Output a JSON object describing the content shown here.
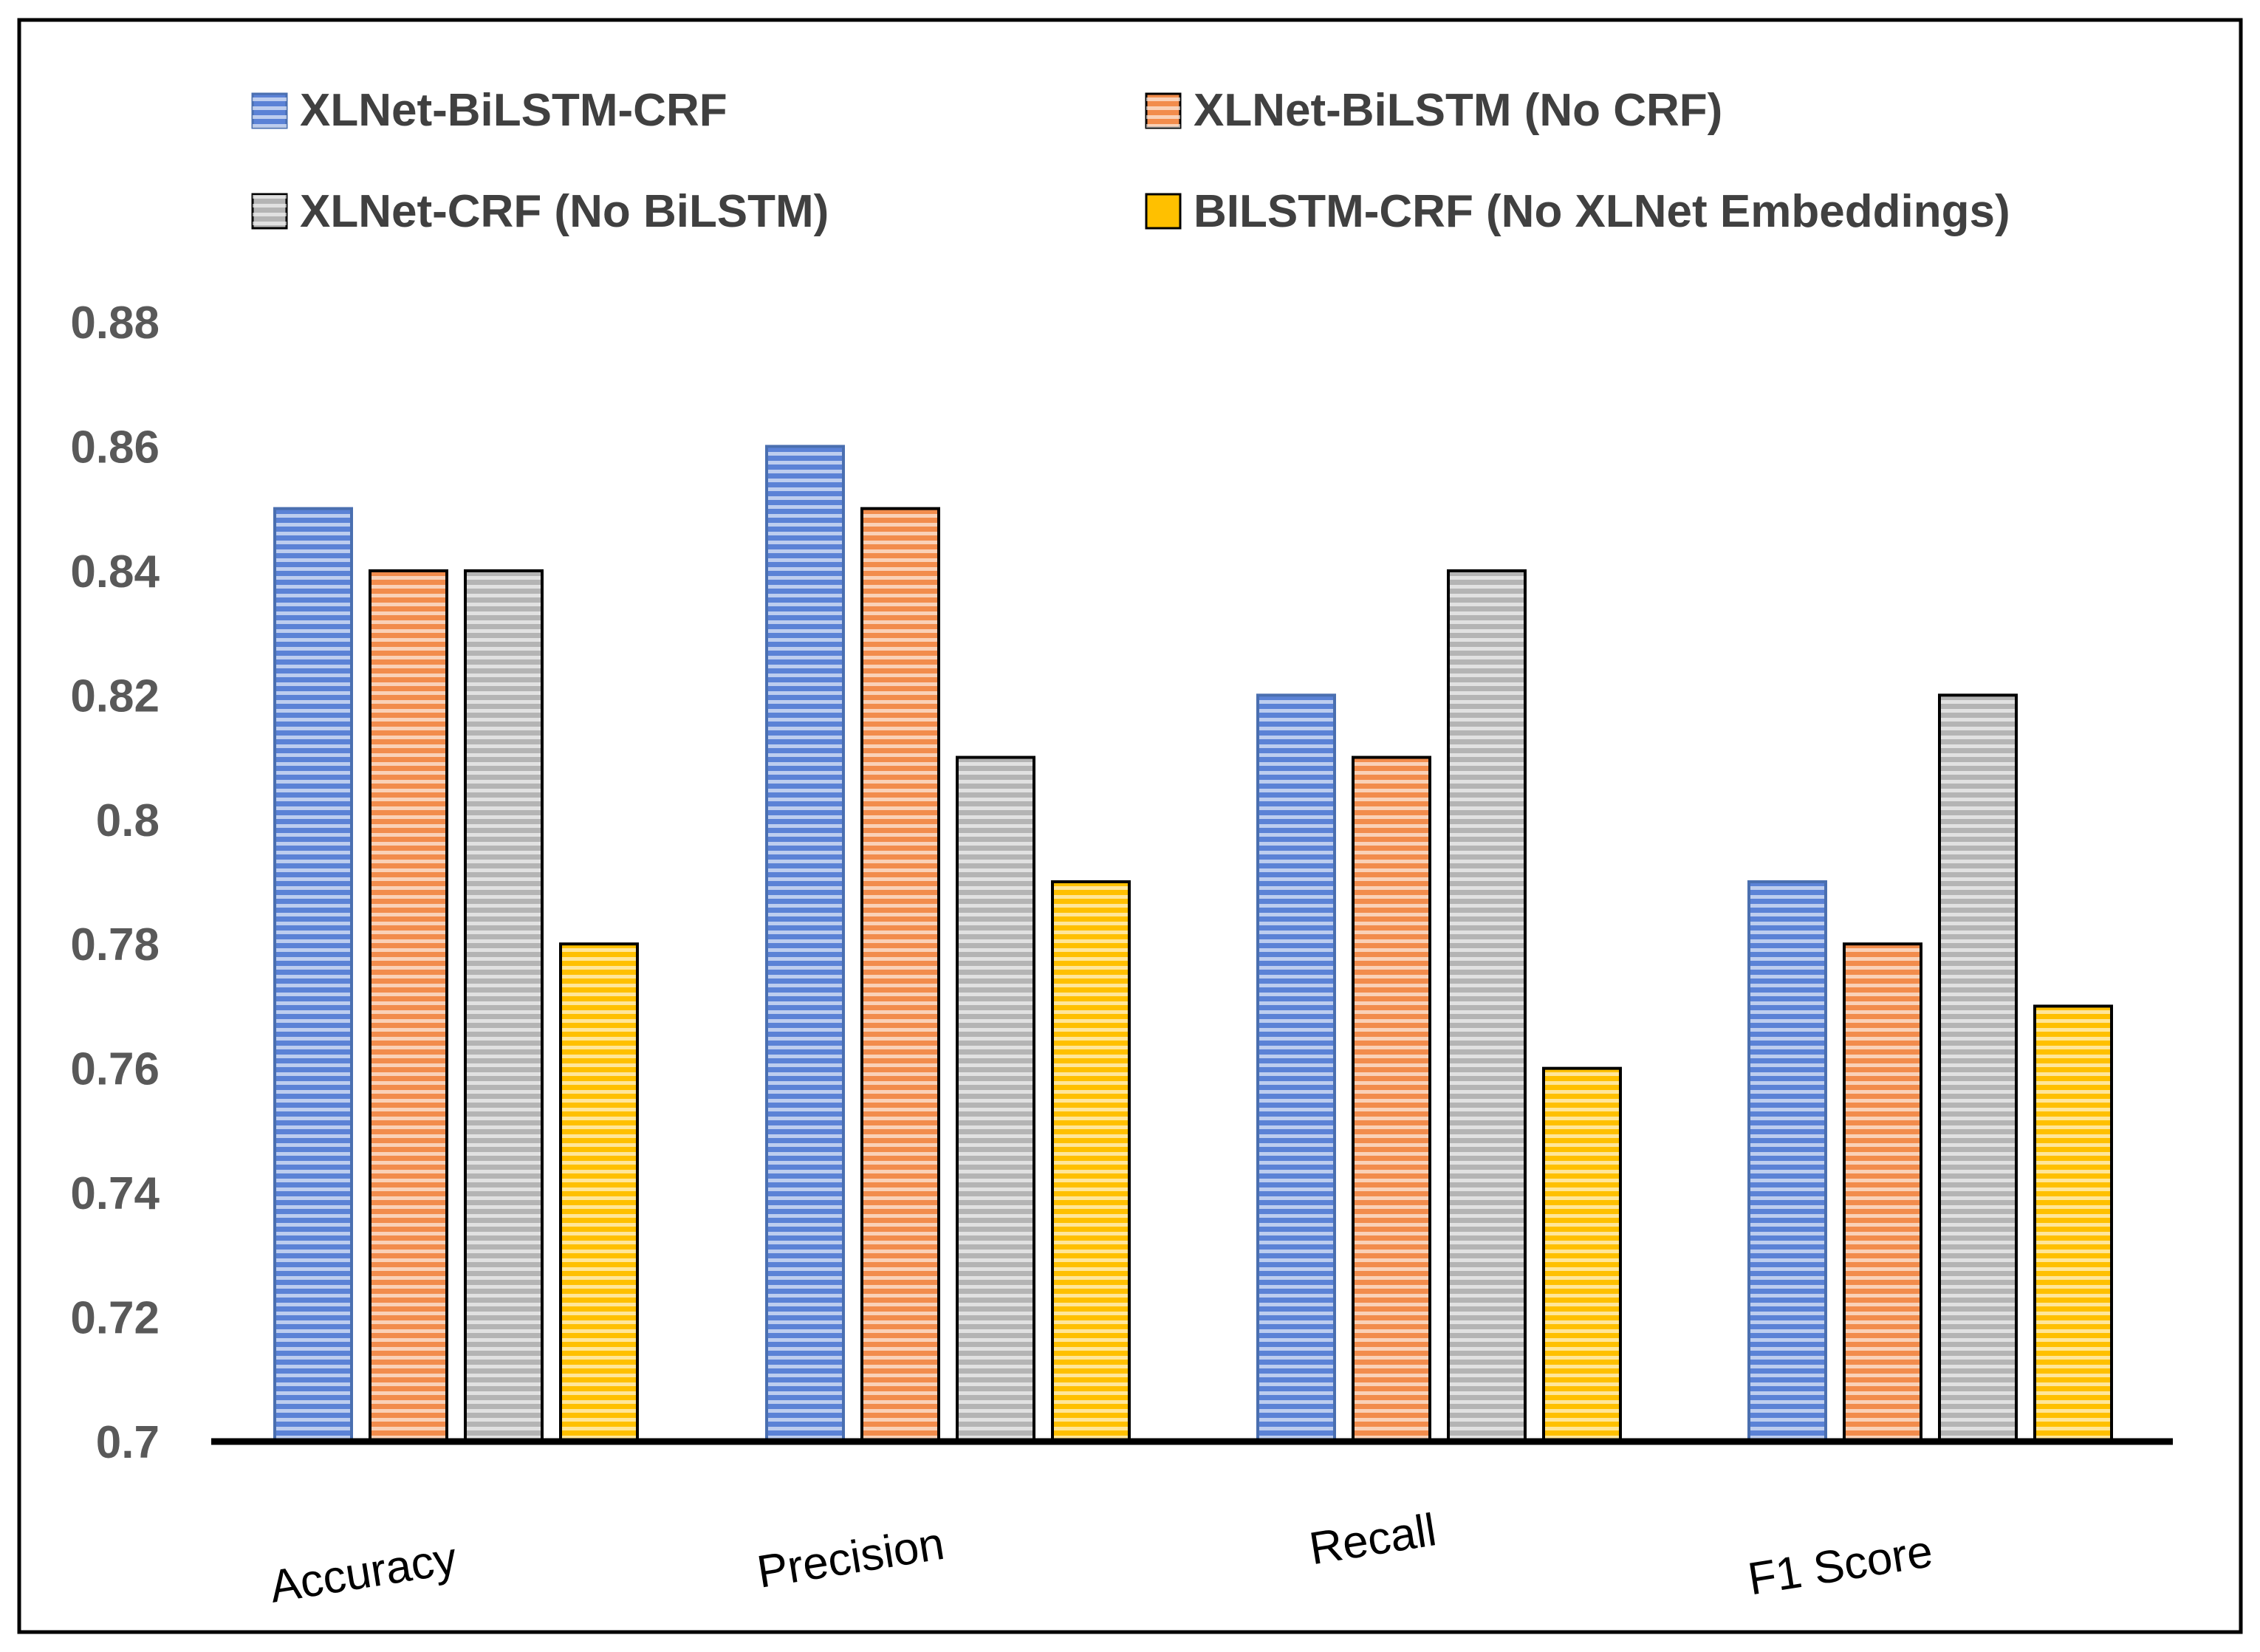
{
  "chart_data": {
    "type": "bar",
    "title": "",
    "xlabel": "",
    "ylabel": "",
    "ylim": [
      0.7,
      0.88
    ],
    "yticks": [
      "0.7",
      "0.72",
      "0.74",
      "0.76",
      "0.78",
      "0.8",
      "0.82",
      "0.84",
      "0.86",
      "0.88"
    ],
    "categories": [
      "Accuracy",
      "Precision",
      "Recall",
      "F1 Score"
    ],
    "grid": false,
    "legend_position": "top",
    "series": [
      {
        "name": "XLNet-BiLSTM-CRF",
        "color": "#5b82d6",
        "values": [
          0.85,
          0.86,
          0.82,
          0.79
        ]
      },
      {
        "name": "XLNet-BiLSTM (No CRF)",
        "color": "#f28c4c",
        "values": [
          0.84,
          0.85,
          0.81,
          0.78
        ]
      },
      {
        "name": "XLNet-CRF (No BiLSTM)",
        "color": "#b4b4b4",
        "values": [
          0.84,
          0.81,
          0.84,
          0.82
        ]
      },
      {
        "name": "BILSTM-CRF (No XLNet Embeddings)",
        "color": "#ffc000",
        "values": [
          0.78,
          0.79,
          0.76,
          0.77
        ]
      }
    ]
  }
}
